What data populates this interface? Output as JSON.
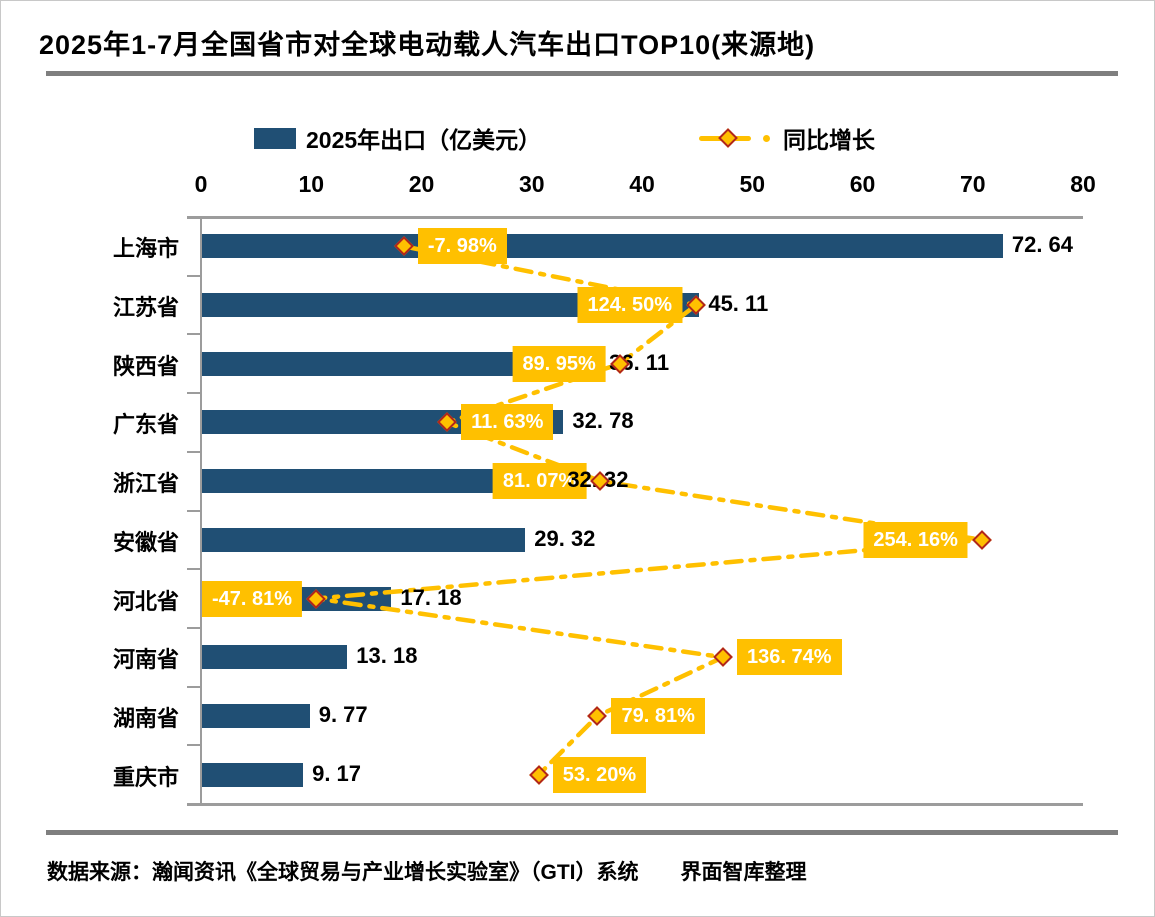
{
  "title": "2025年1-7月全国省市对全球电动载人汽车出口TOP10(来源地)",
  "legend": {
    "bar_label": "2025年出口（亿美元）",
    "line_label": "同比增长"
  },
  "footer": {
    "source": "数据来源：瀚闻资讯《全球贸易与产业增长实验室》（GTI）系统　　界面智库整理"
  },
  "colors": {
    "bar": "#204F74",
    "gold": "#FFC000",
    "diamond_border": "#B1261C",
    "axis_gray": "#9C9C9C",
    "rule_gray": "#7F7F7F",
    "box_text": "#FFFFFF"
  },
  "chart_data": {
    "type": "bar",
    "orientation": "horizontal",
    "title": "2025年1-7月全国省市对全球电动载人汽车出口TOP10(来源地)",
    "categories": [
      "上海市",
      "江苏省",
      "陕西省",
      "广东省",
      "浙江省",
      "安徽省",
      "河北省",
      "河南省",
      "湖南省",
      "重庆市"
    ],
    "series": [
      {
        "name": "2025年出口（亿美元）",
        "type": "bar",
        "values": [
          72.64,
          45.11,
          36.11,
          32.78,
          32.32,
          29.32,
          17.18,
          13.18,
          9.77,
          9.17
        ]
      },
      {
        "name": "同比增长",
        "type": "line",
        "unit": "%",
        "values": [
          -7.98,
          124.5,
          89.95,
          11.63,
          81.07,
          254.16,
          -47.81,
          136.74,
          79.81,
          53.2
        ]
      }
    ],
    "x_axis": {
      "min": 0,
      "max": 80,
      "ticks": [
        0,
        10,
        20,
        30,
        40,
        50,
        60,
        70,
        80
      ]
    },
    "secondary_axis": {
      "min": -100,
      "max": 300,
      "visible": false
    },
    "pct_label_side": [
      "right",
      "left",
      "left",
      "right",
      "left",
      "left",
      "left",
      "right",
      "right",
      "right"
    ],
    "grid": false,
    "legend_position": "top"
  }
}
